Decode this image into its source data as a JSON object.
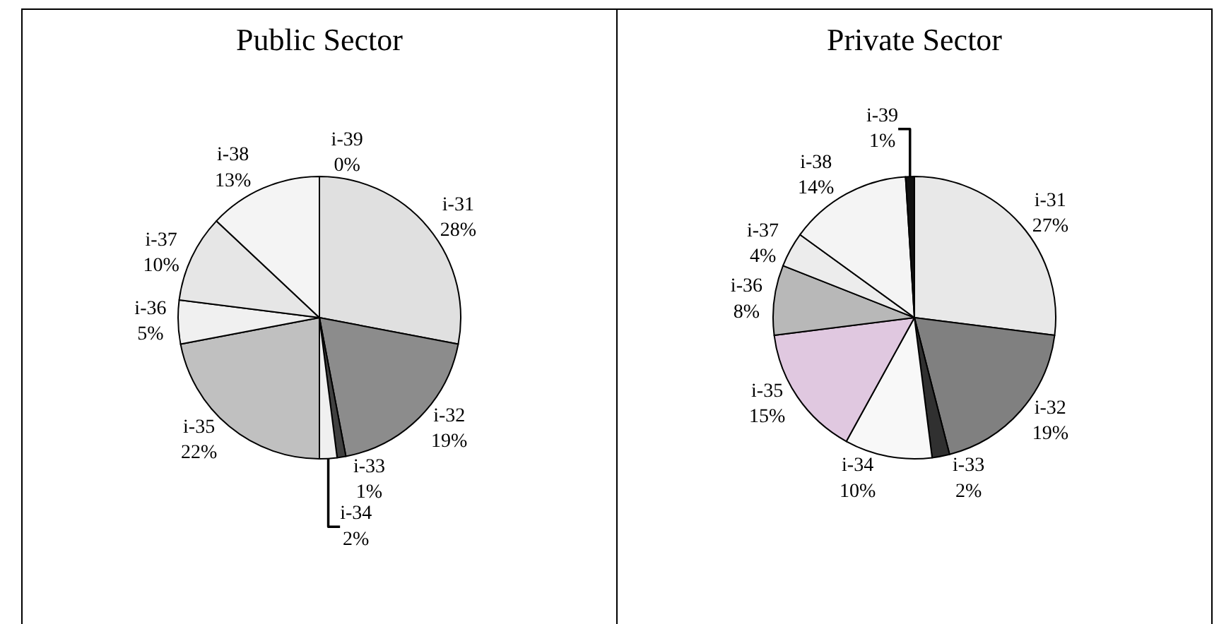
{
  "chart_data": [
    {
      "type": "pie",
      "title": "Public Sector",
      "categories": [
        "i-31",
        "i-32",
        "i-33",
        "i-34",
        "i-35",
        "i-36",
        "i-37",
        "i-38",
        "i-39"
      ],
      "values": [
        28,
        19,
        1,
        2,
        22,
        5,
        10,
        13,
        0
      ],
      "value_labels": [
        "28%",
        "19%",
        "1%",
        "2%",
        "22%",
        "5%",
        "10%",
        "13%",
        "0%"
      ],
      "colors": [
        "#e0e0e0",
        "#8c8c8c",
        "#404040",
        "#f0f0f0",
        "#c0c0c0",
        "#f0f0f0",
        "#e6e6e6",
        "#f4f4f4",
        "#ffffff"
      ]
    },
    {
      "type": "pie",
      "title": "Private Sector",
      "categories": [
        "i-31",
        "i-32",
        "i-33",
        "i-34",
        "i-35",
        "i-36",
        "i-37",
        "i-38",
        "i-39"
      ],
      "values": [
        27,
        19,
        2,
        10,
        15,
        8,
        4,
        14,
        1
      ],
      "value_labels": [
        "27%",
        "19%",
        "2%",
        "10%",
        "15%",
        "8%",
        "4%",
        "14%",
        "1%"
      ],
      "colors": [
        "#e8e8e8",
        "#808080",
        "#303030",
        "#f8f8f8",
        "#e0c8e0",
        "#b8b8b8",
        "#ececec",
        "#f4f4f4",
        "#101010"
      ]
    }
  ]
}
